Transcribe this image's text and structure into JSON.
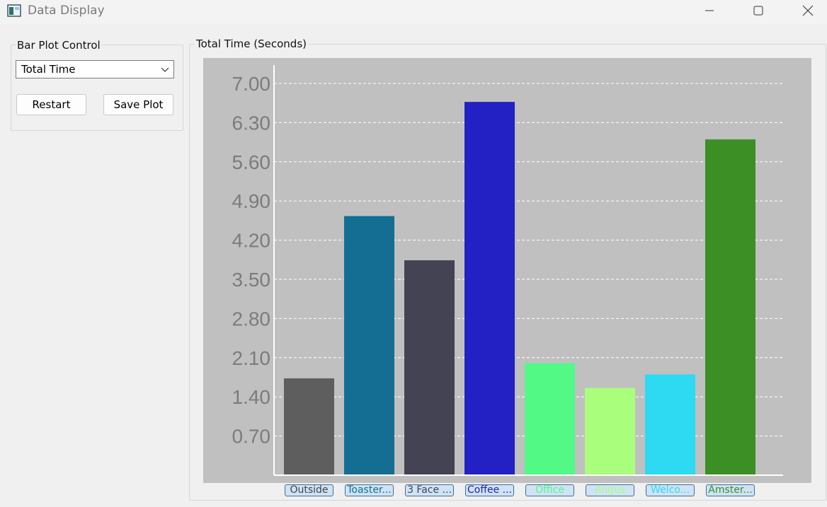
{
  "window": {
    "title": "Data Display"
  },
  "control_panel": {
    "title": "Bar Plot Control",
    "metric_select": {
      "value": "Total Time"
    },
    "restart_label": "Restart",
    "save_plot_label": "Save Plot"
  },
  "plot_panel": {
    "title": "Total Time (Seconds)"
  },
  "chart_data": {
    "type": "bar",
    "title": "Total Time (Seconds)",
    "xlabel": "",
    "ylabel": "",
    "ylim": [
      0,
      7.3
    ],
    "yticks": [
      "0.70",
      "1.40",
      "2.10",
      "2.80",
      "3.50",
      "4.20",
      "4.90",
      "5.60",
      "6.30",
      "7.00"
    ],
    "ytick_values": [
      0.7,
      1.4,
      2.1,
      2.8,
      3.5,
      4.2,
      4.9,
      5.6,
      6.3,
      7.0
    ],
    "grid": true,
    "categories": [
      "Outside",
      "Toaster...",
      "3 Face ...",
      "Coffee ...",
      "Office",
      "Angus",
      "Welco...",
      "Amster..."
    ],
    "values": [
      1.73,
      4.63,
      3.84,
      6.67,
      2.0,
      1.56,
      1.8,
      6.0
    ],
    "colors": [
      "#5e5e5e",
      "#146e93",
      "#444353",
      "#2321c3",
      "#52f985",
      "#a9fe7c",
      "#2ed9f2",
      "#3b8f25"
    ],
    "label_text_colors": [
      "#444444",
      "#146e93",
      "#444353",
      "#2321c3",
      "#52f985",
      "#a9fe7c",
      "#2ed9f2",
      "#3b8f25"
    ]
  }
}
